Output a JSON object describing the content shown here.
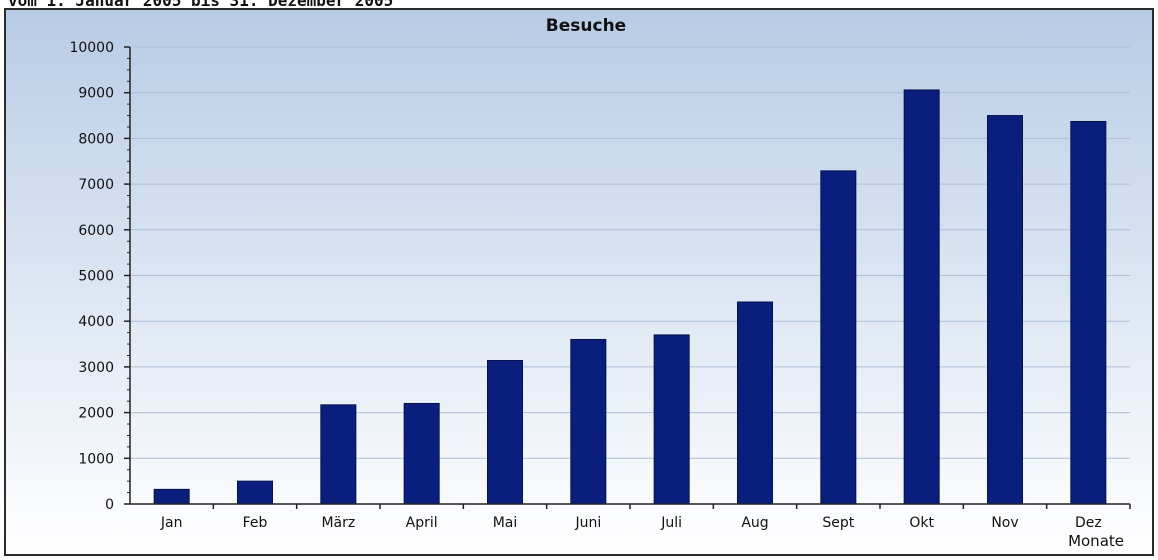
{
  "header": {
    "caption": "vom 1. Januar 2005 bis 31. Dezember 2005"
  },
  "chart_data": {
    "type": "bar",
    "title": "Besuche",
    "xlabel": "Monate",
    "ylabel": "",
    "categories": [
      "Jan",
      "Feb",
      "März",
      "April",
      "Mai",
      "Juni",
      "Juli",
      "Aug",
      "Sept",
      "Okt",
      "Nov",
      "Dez"
    ],
    "series": [
      {
        "values": [
          320,
          500,
          2170,
          2200,
          3140,
          3600,
          3700,
          4420,
          7290,
          9060,
          8500,
          8370
        ]
      }
    ],
    "ylim": [
      0,
      10000
    ],
    "yticks": [
      0,
      1000,
      2000,
      3000,
      4000,
      5000,
      6000,
      7000,
      8000,
      9000,
      10000
    ],
    "ytick_labels": [
      "0",
      "1000",
      "2000",
      "3000",
      "4000",
      "5000",
      "6000",
      "7000",
      "8000",
      "9000",
      "10000"
    ],
    "grid": true,
    "legend": "none",
    "colors": {
      "bar": "#0a1f7d",
      "bar_edge": "#05114a",
      "background_top": "#b8cce6",
      "background_bottom": "#ffffff",
      "grid": "#aebfd6",
      "axis": "#222222"
    }
  }
}
